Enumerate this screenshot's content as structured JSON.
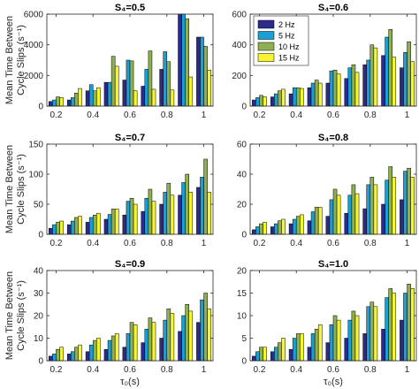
{
  "colors": [
    "#2b2b8c",
    "#1a9fd4",
    "#8fb050",
    "#f5f532"
  ],
  "chart_data": [
    {
      "type": "bar",
      "title": "S₄=0.5",
      "categories": [
        "0.2",
        "0.3",
        "0.4",
        "0.5",
        "0.6",
        "0.7",
        "0.8",
        "0.9",
        "1"
      ],
      "ylim": [
        0,
        6000
      ],
      "yticks": [
        "0",
        "2000",
        "4000",
        "6000"
      ],
      "xticks": [
        "0.2",
        "0.4",
        "0.6",
        "0.8",
        "1"
      ],
      "ylabel": "Mean Time Between Cycle Slips (s⁻¹)",
      "xlabel": "",
      "series": [
        {
          "name": "2 Hz",
          "values": [
            300,
            400,
            1000,
            1550,
            1700,
            1300,
            2400,
            6000,
            4500
          ]
        },
        {
          "name": "5 Hz",
          "values": [
            400,
            550,
            1400,
            1550,
            3000,
            2400,
            3550,
            6000,
            4500
          ]
        },
        {
          "name": "10 Hz",
          "values": [
            600,
            850,
            1000,
            3250,
            2950,
            3600,
            2900,
            5700,
            3900
          ]
        },
        {
          "name": "15 Hz",
          "values": [
            550,
            1150,
            1200,
            2600,
            1000,
            1100,
            1050,
            1900,
            2350
          ]
        }
      ]
    },
    {
      "type": "bar",
      "title": "S₄=0.6",
      "categories": [
        "0.2",
        "0.3",
        "0.4",
        "0.5",
        "0.6",
        "0.7",
        "0.8",
        "0.9",
        "1"
      ],
      "ylim": [
        0,
        600
      ],
      "yticks": [
        "0",
        "200",
        "400",
        "600"
      ],
      "xticks": [
        "0.2",
        "0.4",
        "0.6",
        "0.8",
        "1"
      ],
      "ylabel": "",
      "xlabel": "",
      "legend": {
        "position": "top-left",
        "entries": [
          "2 Hz",
          "5 Hz",
          "10 Hz",
          "15 Hz"
        ]
      },
      "series": [
        {
          "name": "2 Hz",
          "values": [
            40,
            60,
            80,
            120,
            150,
            180,
            270,
            330,
            250
          ]
        },
        {
          "name": "5 Hz",
          "values": [
            55,
            80,
            120,
            150,
            230,
            250,
            300,
            450,
            350
          ]
        },
        {
          "name": "10 Hz",
          "values": [
            70,
            100,
            120,
            170,
            235,
            270,
            400,
            500,
            420
          ]
        },
        {
          "name": "15 Hz",
          "values": [
            60,
            110,
            115,
            150,
            210,
            220,
            380,
            320,
            290
          ]
        }
      ]
    },
    {
      "type": "bar",
      "title": "S₄=0.7",
      "categories": [
        "0.2",
        "0.3",
        "0.4",
        "0.5",
        "0.6",
        "0.7",
        "0.8",
        "0.9",
        "1"
      ],
      "ylim": [
        0,
        150
      ],
      "yticks": [
        "0",
        "50",
        "100",
        "150"
      ],
      "xticks": [
        "0.2",
        "0.4",
        "0.6",
        "0.8",
        "1"
      ],
      "ylabel": "Mean Time Between Cycle Slips (s⁻¹)",
      "xlabel": "",
      "series": [
        {
          "name": "2 Hz",
          "values": [
            10,
            16,
            20,
            25,
            32,
            38,
            50,
            65,
            78
          ]
        },
        {
          "name": "5 Hz",
          "values": [
            16,
            22,
            28,
            33,
            55,
            60,
            70,
            86,
            95
          ]
        },
        {
          "name": "10 Hz",
          "values": [
            20,
            28,
            32,
            42,
            60,
            75,
            85,
            100,
            125
          ]
        },
        {
          "name": "15 Hz",
          "values": [
            22,
            30,
            35,
            42,
            50,
            55,
            65,
            70,
            70
          ]
        }
      ]
    },
    {
      "type": "bar",
      "title": "S₄=0.8",
      "categories": [
        "0.2",
        "0.3",
        "0.4",
        "0.5",
        "0.6",
        "0.7",
        "0.8",
        "0.9",
        "1"
      ],
      "ylim": [
        0,
        60
      ],
      "yticks": [
        "0",
        "20",
        "40",
        "60"
      ],
      "xticks": [
        "0.2",
        "0.4",
        "0.6",
        "0.8",
        "1"
      ],
      "ylabel": "",
      "xlabel": "",
      "series": [
        {
          "name": "2 Hz",
          "values": [
            3,
            5,
            7,
            9,
            12,
            14,
            17,
            20,
            23
          ]
        },
        {
          "name": "5 Hz",
          "values": [
            5,
            7,
            10,
            15,
            23,
            26,
            33,
            36,
            42
          ]
        },
        {
          "name": "10 Hz",
          "values": [
            7,
            9,
            12,
            18,
            30,
            33,
            38,
            45,
            44
          ]
        },
        {
          "name": "15 Hz",
          "values": [
            8,
            10,
            13,
            18,
            26,
            27,
            33,
            38,
            38
          ]
        }
      ]
    },
    {
      "type": "bar",
      "title": "S₄=0.9",
      "categories": [
        "0.2",
        "0.3",
        "0.4",
        "0.5",
        "0.6",
        "0.7",
        "0.8",
        "0.9",
        "1"
      ],
      "ylim": [
        0,
        40
      ],
      "yticks": [
        "0",
        "10",
        "20",
        "30",
        "40"
      ],
      "xticks": [
        "0.2",
        "0.4",
        "0.6",
        "0.8",
        "1"
      ],
      "ylabel": "Mean Time Between Cycle Slips (s⁻¹)",
      "xlabel": "τ₀(s)",
      "series": [
        {
          "name": "2 Hz",
          "values": [
            2,
            3,
            4,
            5,
            6,
            8,
            10,
            13,
            17
          ]
        },
        {
          "name": "5 Hz",
          "values": [
            3,
            4,
            7,
            9,
            12,
            14,
            18,
            20,
            27
          ]
        },
        {
          "name": "10 Hz",
          "values": [
            5,
            6,
            9,
            11,
            17,
            19,
            23,
            25,
            30
          ]
        },
        {
          "name": "15 Hz",
          "values": [
            6,
            7,
            10,
            12,
            16,
            17,
            21,
            22,
            23
          ]
        }
      ]
    },
    {
      "type": "bar",
      "title": "S₄=1.0",
      "categories": [
        "0.2",
        "0.3",
        "0.4",
        "0.5",
        "0.6",
        "0.7",
        "0.8",
        "0.9",
        "1"
      ],
      "ylim": [
        0,
        20
      ],
      "yticks": [
        "0",
        "5",
        "10",
        "15",
        "20"
      ],
      "xticks": [
        "0.2",
        "0.4",
        "0.6",
        "0.8",
        "1"
      ],
      "ylabel": "",
      "xlabel": "τ₀(s)",
      "series": [
        {
          "name": "2 Hz",
          "values": [
            1,
            2,
            2.5,
            3,
            4,
            5,
            6,
            7,
            9
          ]
        },
        {
          "name": "5 Hz",
          "values": [
            2,
            3,
            5,
            6,
            8,
            9,
            12,
            14,
            15
          ]
        },
        {
          "name": "10 Hz",
          "values": [
            3,
            4,
            6,
            7,
            10,
            11,
            13,
            16,
            17
          ]
        },
        {
          "name": "15 Hz",
          "values": [
            3,
            5,
            6,
            8,
            9,
            10,
            12,
            15,
            16
          ]
        }
      ]
    }
  ]
}
